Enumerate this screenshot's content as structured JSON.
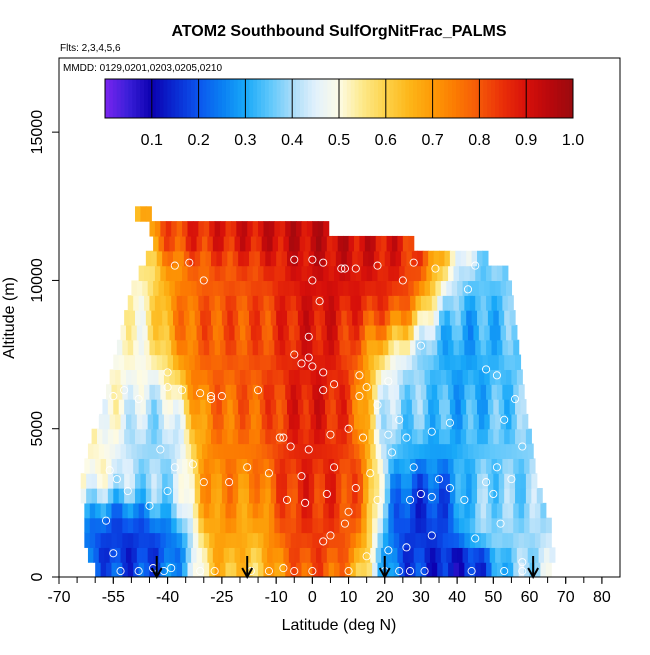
{
  "chart_data": {
    "type": "heatmap",
    "title": "ATOM2 Southbound SulfOrgNitFrac_PALMS",
    "subtitle_flights": "Flts: 2,3,4,5,6",
    "subtitle_dates": "MMDD: 0129,0201,0203,0205,0210",
    "xlabel": "Latitude (deg N)",
    "ylabel": "Altitude (m)",
    "xlim": [
      -70,
      85
    ],
    "ylim": [
      0,
      17500
    ],
    "xticks": [
      "-70",
      "-55",
      "-40",
      "-25",
      "-10",
      "0",
      "10",
      "20",
      "30",
      "40",
      "50",
      "60",
      "70",
      "80"
    ],
    "xtick_values": [
      -70,
      -55,
      -40,
      -25,
      -10,
      0,
      10,
      20,
      30,
      40,
      50,
      60,
      70,
      80
    ],
    "yticks": [
      "0",
      "5000",
      "10000",
      "15000"
    ],
    "ytick_values": [
      0,
      5000,
      10000,
      15000
    ],
    "colorbar": {
      "range": [
        0,
        1.0
      ],
      "tick_labels": [
        "0.1",
        "0.2",
        "0.3",
        "0.4",
        "0.5",
        "0.6",
        "0.7",
        "0.8",
        "0.9",
        "1.0"
      ],
      "tick_values": [
        0.1,
        0.2,
        0.3,
        0.4,
        0.5,
        0.6,
        0.7,
        0.8,
        0.9,
        1.0
      ],
      "colors": [
        "#7a24f0",
        "#3a1fd8",
        "#0b00b0",
        "#0a2ad2",
        "#0b55ee",
        "#0a7ff2",
        "#18a8f8",
        "#5bc6fb",
        "#a8dcf9",
        "#e2f1fc",
        "#fdfbe6",
        "#fde98a",
        "#fdd24a",
        "#fdb619",
        "#fd9a06",
        "#fc7a02",
        "#f55708",
        "#ea2f08",
        "#d7100a",
        "#b8080c",
        "#9a0a0e"
      ]
    },
    "altitude_bins_m": [
      0,
      500,
      1000,
      1500,
      2000,
      2500,
      3000,
      3500,
      4000,
      4500,
      5000,
      5500,
      6000,
      6500,
      7000,
      7500,
      8000,
      8500,
      9000,
      9500,
      10000,
      10500,
      11000,
      11500,
      12000
    ],
    "row_extent_deg": [
      [
        -60,
        66
      ],
      [
        -62,
        66
      ],
      [
        -63,
        65
      ],
      [
        -63,
        65
      ],
      [
        -63,
        64
      ],
      [
        -64,
        63
      ],
      [
        -64,
        62
      ],
      [
        -63,
        61
      ],
      [
        -62,
        60
      ],
      [
        -61,
        60
      ],
      [
        -59,
        59
      ],
      [
        -58,
        59
      ],
      [
        -57,
        58
      ],
      [
        -56,
        58
      ],
      [
        -55,
        57
      ],
      [
        -54,
        56
      ],
      [
        -53,
        56
      ],
      [
        -52,
        55
      ],
      [
        -51,
        55
      ],
      [
        -50,
        54
      ],
      [
        -48,
        53
      ],
      [
        -46,
        48
      ],
      [
        -44,
        27
      ],
      [
        -45,
        4
      ],
      [
        -49,
        -45
      ]
    ],
    "field_features": [
      {
        "lat": -22,
        "alt_m": 8200,
        "value": 0.85,
        "lat_radius": 14,
        "alt_radius_m": 3800
      },
      {
        "lat": 0,
        "alt_m": 7000,
        "value": 0.95,
        "lat_radius": 10,
        "alt_radius_m": 6000
      },
      {
        "lat": 12,
        "alt_m": 10800,
        "value": 0.95,
        "lat_radius": 20,
        "alt_radius_m": 1800
      },
      {
        "lat": -10,
        "alt_m": 11700,
        "value": 0.98,
        "lat_radius": 25,
        "alt_radius_m": 900
      },
      {
        "lat": -25,
        "alt_m": 4000,
        "value": 0.75,
        "lat_radius": 6,
        "alt_radius_m": 3000
      },
      {
        "lat": 5,
        "alt_m": 3000,
        "value": 0.85,
        "lat_radius": 10,
        "alt_radius_m": 1800
      },
      {
        "lat": -50,
        "alt_m": 1000,
        "value": 0.1,
        "lat_radius": 12,
        "alt_radius_m": 1200
      },
      {
        "lat": -42,
        "alt_m": 4500,
        "value": 0.35,
        "lat_radius": 8,
        "alt_radius_m": 2000
      },
      {
        "lat": 30,
        "alt_m": 2000,
        "value": 0.1,
        "lat_radius": 9,
        "alt_radius_m": 2800
      },
      {
        "lat": 42,
        "alt_m": 400,
        "value": 0.05,
        "lat_radius": 8,
        "alt_radius_m": 600
      },
      {
        "lat": 44,
        "alt_m": 7500,
        "value": 0.25,
        "lat_radius": 10,
        "alt_radius_m": 3000
      },
      {
        "lat": 55,
        "alt_m": 5000,
        "value": 0.35,
        "lat_radius": 10,
        "alt_radius_m": 5000
      },
      {
        "lat": 28,
        "alt_m": 5000,
        "value": 0.4,
        "lat_radius": 8,
        "alt_radius_m": 1500
      },
      {
        "lat": -52,
        "alt_m": 8500,
        "value": 0.5,
        "lat_radius": 6,
        "alt_radius_m": 2500
      }
    ],
    "sample_points": [
      [
        -38,
        10500
      ],
      [
        -34,
        10600
      ],
      [
        -30,
        10000
      ],
      [
        -5,
        10700
      ],
      [
        0,
        10700
      ],
      [
        0,
        10000
      ],
      [
        3,
        10600
      ],
      [
        8,
        10400
      ],
      [
        9,
        10400
      ],
      [
        12,
        10400
      ],
      [
        18,
        10500
      ],
      [
        25,
        10000
      ],
      [
        28,
        10600
      ],
      [
        34,
        10400
      ],
      [
        43,
        9700
      ],
      [
        45,
        10500
      ],
      [
        2,
        9300
      ],
      [
        -1,
        8100
      ],
      [
        -1,
        7400
      ],
      [
        3,
        6900
      ],
      [
        0,
        7100
      ],
      [
        13,
        6800
      ],
      [
        3,
        6300
      ],
      [
        -5,
        7500
      ],
      [
        -3,
        7200
      ],
      [
        6,
        6500
      ],
      [
        -15,
        6300
      ],
      [
        15,
        6400
      ],
      [
        21,
        6600
      ],
      [
        30,
        7800
      ],
      [
        48,
        7000
      ],
      [
        51,
        6800
      ],
      [
        -40,
        6900
      ],
      [
        -40,
        6400
      ],
      [
        -36,
        6300
      ],
      [
        -31,
        6200
      ],
      [
        -28,
        6100
      ],
      [
        -52,
        6300
      ],
      [
        -48,
        6000
      ],
      [
        -55,
        6100
      ],
      [
        -60,
        5500
      ],
      [
        -25,
        6100
      ],
      [
        -28,
        6000
      ],
      [
        13,
        6100
      ],
      [
        18,
        5800
      ],
      [
        24,
        5300
      ],
      [
        33,
        4900
      ],
      [
        38,
        5200
      ],
      [
        53,
        5300
      ],
      [
        56,
        6000
      ],
      [
        -8,
        4700
      ],
      [
        -9,
        4700
      ],
      [
        -6,
        4400
      ],
      [
        -1,
        4300
      ],
      [
        5,
        4800
      ],
      [
        10,
        5000
      ],
      [
        14,
        4700
      ],
      [
        21,
        4800
      ],
      [
        26,
        4700
      ],
      [
        -42,
        4300
      ],
      [
        -38,
        3700
      ],
      [
        -33,
        3800
      ],
      [
        -56,
        3600
      ],
      [
        -54,
        3300
      ],
      [
        -51,
        2900
      ],
      [
        -30,
        3200
      ],
      [
        -18,
        3700
      ],
      [
        -12,
        3500
      ],
      [
        -3,
        3400
      ],
      [
        6,
        3700
      ],
      [
        12,
        3000
      ],
      [
        16,
        3500
      ],
      [
        22,
        4200
      ],
      [
        28,
        3700
      ],
      [
        30,
        2800
      ],
      [
        35,
        3300
      ],
      [
        38,
        3000
      ],
      [
        48,
        3200
      ],
      [
        51,
        3700
      ],
      [
        55,
        3300
      ],
      [
        58,
        4400
      ],
      [
        -57,
        1900
      ],
      [
        -45,
        2400
      ],
      [
        -40,
        2900
      ],
      [
        -23,
        3200
      ],
      [
        -7,
        2600
      ],
      [
        -2,
        2500
      ],
      [
        4,
        2800
      ],
      [
        10,
        2200
      ],
      [
        18,
        2600
      ],
      [
        27,
        2600
      ],
      [
        33,
        2700
      ],
      [
        42,
        2600
      ],
      [
        50,
        2800
      ],
      [
        -55,
        800
      ],
      [
        -48,
        200
      ],
      [
        -44,
        300
      ],
      [
        -39,
        300
      ],
      [
        -27,
        200
      ],
      [
        -12,
        200
      ],
      [
        -5,
        200
      ],
      [
        3,
        1200
      ],
      [
        5,
        1400
      ],
      [
        9,
        1800
      ],
      [
        15,
        700
      ],
      [
        21,
        900
      ],
      [
        26,
        1000
      ],
      [
        33,
        1400
      ],
      [
        45,
        1300
      ],
      [
        52,
        1800
      ],
      [
        58,
        500
      ],
      [
        -53,
        200
      ],
      [
        -41,
        200
      ],
      [
        -31,
        200
      ],
      [
        -17,
        200
      ],
      [
        -8,
        300
      ],
      [
        0,
        200
      ],
      [
        10,
        200
      ],
      [
        20,
        200
      ],
      [
        24,
        200
      ],
      [
        27,
        200
      ],
      [
        31,
        200
      ],
      [
        44,
        200
      ],
      [
        53,
        200
      ],
      [
        58,
        200
      ]
    ],
    "arrow_latitudes": [
      -43,
      -18,
      20,
      61
    ]
  }
}
